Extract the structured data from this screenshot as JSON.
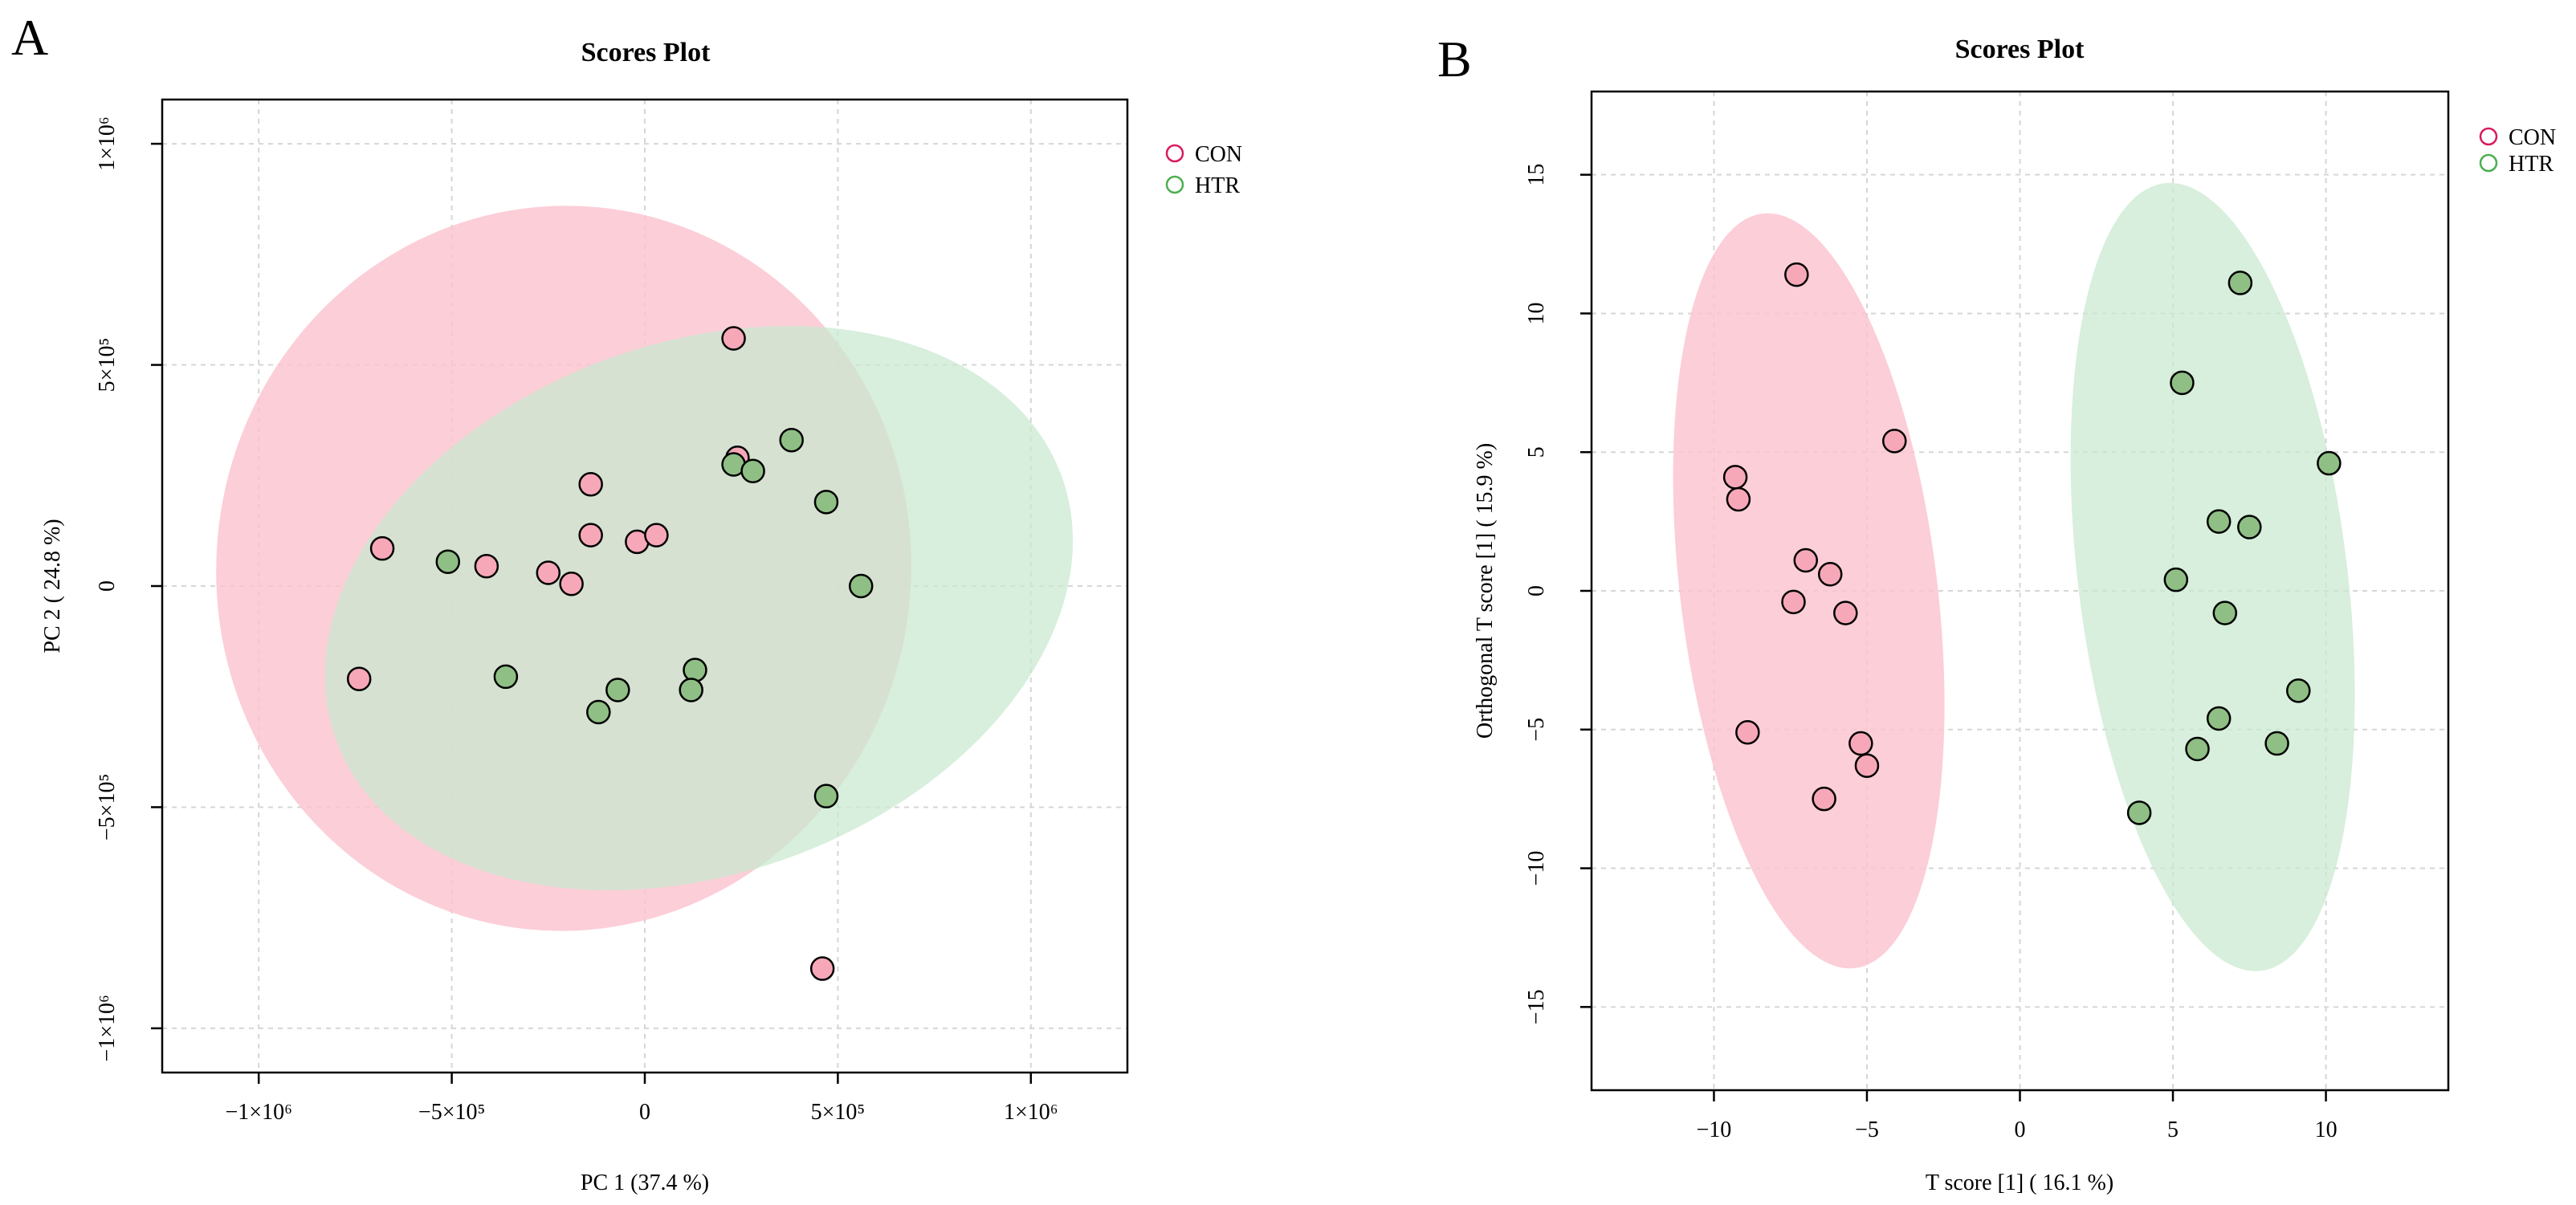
{
  "colors": {
    "con_fill": "#f7a8b8",
    "con_ellipse": "#fbc3cf",
    "con_legend": "#d81b60",
    "htr_fill": "#8fbf85",
    "htr_ellipse": "#c8e9cf",
    "htr_legend": "#4caf50"
  },
  "chart_data": [
    {
      "panel": "A",
      "type": "scatter",
      "title": "Scores Plot",
      "xlabel": "PC 1 (37.4 %)",
      "ylabel": "PC 2 ( 24.8 %)",
      "xlim": [
        -1250000,
        1250000
      ],
      "ylim": [
        -1100000,
        1100000
      ],
      "xticks": [
        {
          "value": -1000000,
          "label": "−1×10⁶"
        },
        {
          "value": -500000,
          "label": "−5×10⁵"
        },
        {
          "value": 0,
          "label": "0"
        },
        {
          "value": 500000,
          "label": "5×10⁵"
        },
        {
          "value": 1000000,
          "label": "1×10⁶"
        }
      ],
      "yticks": [
        {
          "value": -1000000,
          "label": "−1×10⁶"
        },
        {
          "value": -500000,
          "label": "−5×10⁵"
        },
        {
          "value": 0,
          "label": "0"
        },
        {
          "value": 500000,
          "label": "5×10⁵"
        },
        {
          "value": 1000000,
          "label": "1×10⁶"
        }
      ],
      "legend": [
        {
          "name": "CON",
          "color": "#d81b60"
        },
        {
          "name": "HTR",
          "color": "#4caf50"
        }
      ],
      "ellipses": [
        {
          "group": "CON",
          "cx": -210000,
          "cy": 40000,
          "rx": 900000,
          "ry": 820000,
          "angle": 5
        },
        {
          "group": "HTR",
          "cx": 140000,
          "cy": -50000,
          "rx": 1000000,
          "ry": 600000,
          "angle": -20
        }
      ],
      "series": [
        {
          "name": "CON",
          "points": [
            [
              230000,
              560000
            ],
            [
              -140000,
              230000
            ],
            [
              240000,
              290000
            ],
            [
              -680000,
              85000
            ],
            [
              -410000,
              45000
            ],
            [
              -250000,
              30000
            ],
            [
              -140000,
              115000
            ],
            [
              -20000,
              100000
            ],
            [
              30000,
              115000
            ],
            [
              -190000,
              5000
            ],
            [
              -740000,
              -210000
            ],
            [
              460000,
              -865000
            ]
          ]
        },
        {
          "name": "HTR",
          "points": [
            [
              380000,
              330000
            ],
            [
              230000,
              275000
            ],
            [
              280000,
              260000
            ],
            [
              470000,
              190000
            ],
            [
              -510000,
              55000
            ],
            [
              560000,
              0
            ],
            [
              -360000,
              -205000
            ],
            [
              -70000,
              -235000
            ],
            [
              -120000,
              -285000
            ],
            [
              130000,
              -190000
            ],
            [
              120000,
              -235000
            ],
            [
              470000,
              -475000
            ]
          ]
        }
      ]
    },
    {
      "panel": "B",
      "type": "scatter",
      "title": "Scores Plot",
      "xlabel": "T score [1] ( 16.1 %)",
      "ylabel": "Orthogonal T score [1] ( 15.9 %)",
      "xlim": [
        -14,
        14
      ],
      "ylim": [
        -18,
        18
      ],
      "xticks": [
        {
          "value": -10,
          "label": "−10"
        },
        {
          "value": -5,
          "label": "−5"
        },
        {
          "value": 0,
          "label": "0"
        },
        {
          "value": 5,
          "label": "5"
        },
        {
          "value": 10,
          "label": "10"
        }
      ],
      "yticks": [
        {
          "value": -15,
          "label": "−15"
        },
        {
          "value": -10,
          "label": "−10"
        },
        {
          "value": -5,
          "label": "−5"
        },
        {
          "value": 0,
          "label": "0"
        },
        {
          "value": 5,
          "label": "5"
        },
        {
          "value": 10,
          "label": "10"
        },
        {
          "value": 15,
          "label": "15"
        }
      ],
      "legend": [
        {
          "name": "CON",
          "color": "#d81b60"
        },
        {
          "name": "HTR",
          "color": "#4caf50"
        }
      ],
      "ellipses": [
        {
          "group": "CON",
          "cx": -6.9,
          "cy": 0,
          "rx": 4.2,
          "ry": 13.7,
          "angle": -7
        },
        {
          "group": "HTR",
          "cx": 6.3,
          "cy": 0.5,
          "rx": 4.4,
          "ry": 14.3,
          "angle": -7
        }
      ],
      "series": [
        {
          "name": "CON",
          "points": [
            [
              -7.3,
              11.4
            ],
            [
              -4.1,
              5.4
            ],
            [
              -9.3,
              4.1
            ],
            [
              -9.2,
              3.3
            ],
            [
              -7.0,
              1.1
            ],
            [
              -6.2,
              0.6
            ],
            [
              -7.4,
              -0.4
            ],
            [
              -5.7,
              -0.8
            ],
            [
              -8.9,
              -5.1
            ],
            [
              -5.2,
              -5.5
            ],
            [
              -5.0,
              -6.3
            ],
            [
              -6.4,
              -7.5
            ]
          ]
        },
        {
          "name": "HTR",
          "points": [
            [
              7.2,
              11.1
            ],
            [
              5.3,
              7.5
            ],
            [
              10.1,
              4.6
            ],
            [
              6.5,
              2.5
            ],
            [
              7.5,
              2.3
            ],
            [
              5.1,
              0.4
            ],
            [
              6.7,
              -0.8
            ],
            [
              9.1,
              -3.6
            ],
            [
              6.5,
              -4.6
            ],
            [
              8.4,
              -5.5
            ],
            [
              5.8,
              -5.7
            ],
            [
              3.9,
              -8.0
            ]
          ]
        }
      ]
    }
  ]
}
